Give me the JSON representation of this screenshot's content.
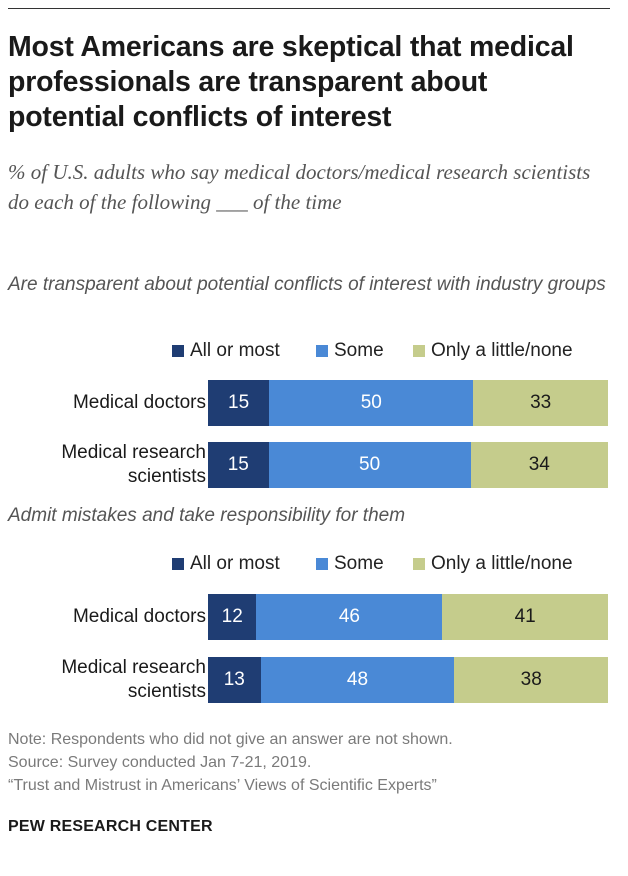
{
  "title": "Most Americans are skeptical that medical professionals are transparent about potential conflicts of interest",
  "subtitle": "% of U.S. adults who say medical doctors/medical research scientists do each of the following ___ of the time",
  "colors": {
    "all_or_most": "#1f3d73",
    "some": "#4a89d6",
    "only_a_little": "#c5cc8c"
  },
  "chart_data": [
    {
      "type": "bar",
      "orientation": "horizontal",
      "stacked": true,
      "title": "Are transparent about potential conflicts of interest with industry groups",
      "legend": [
        "All or most",
        "Some",
        "Only a little/none"
      ],
      "categories": [
        "Medical doctors",
        "Medical research scientists"
      ],
      "series": [
        {
          "name": "All or most",
          "values": [
            15,
            15
          ]
        },
        {
          "name": "Some",
          "values": [
            50,
            50
          ]
        },
        {
          "name": "Only a little/none",
          "values": [
            33,
            34
          ]
        }
      ]
    },
    {
      "type": "bar",
      "orientation": "horizontal",
      "stacked": true,
      "title": "Admit mistakes and take responsibility for them",
      "legend": [
        "All or most",
        "Some",
        "Only a little/none"
      ],
      "categories": [
        "Medical doctors",
        "Medical research scientists"
      ],
      "series": [
        {
          "name": "All or most",
          "values": [
            12,
            13
          ]
        },
        {
          "name": "Some",
          "values": [
            46,
            48
          ]
        },
        {
          "name": "Only a little/none",
          "values": [
            41,
            38
          ]
        }
      ]
    }
  ],
  "notes": {
    "note": "Note: Respondents who did not give an answer are not shown.",
    "source": "Source: Survey conducted Jan 7-21, 2019.",
    "report": "“Trust and Mistrust in Americans’ Views of Scientific Experts”"
  },
  "brand": "PEW RESEARCH CENTER"
}
